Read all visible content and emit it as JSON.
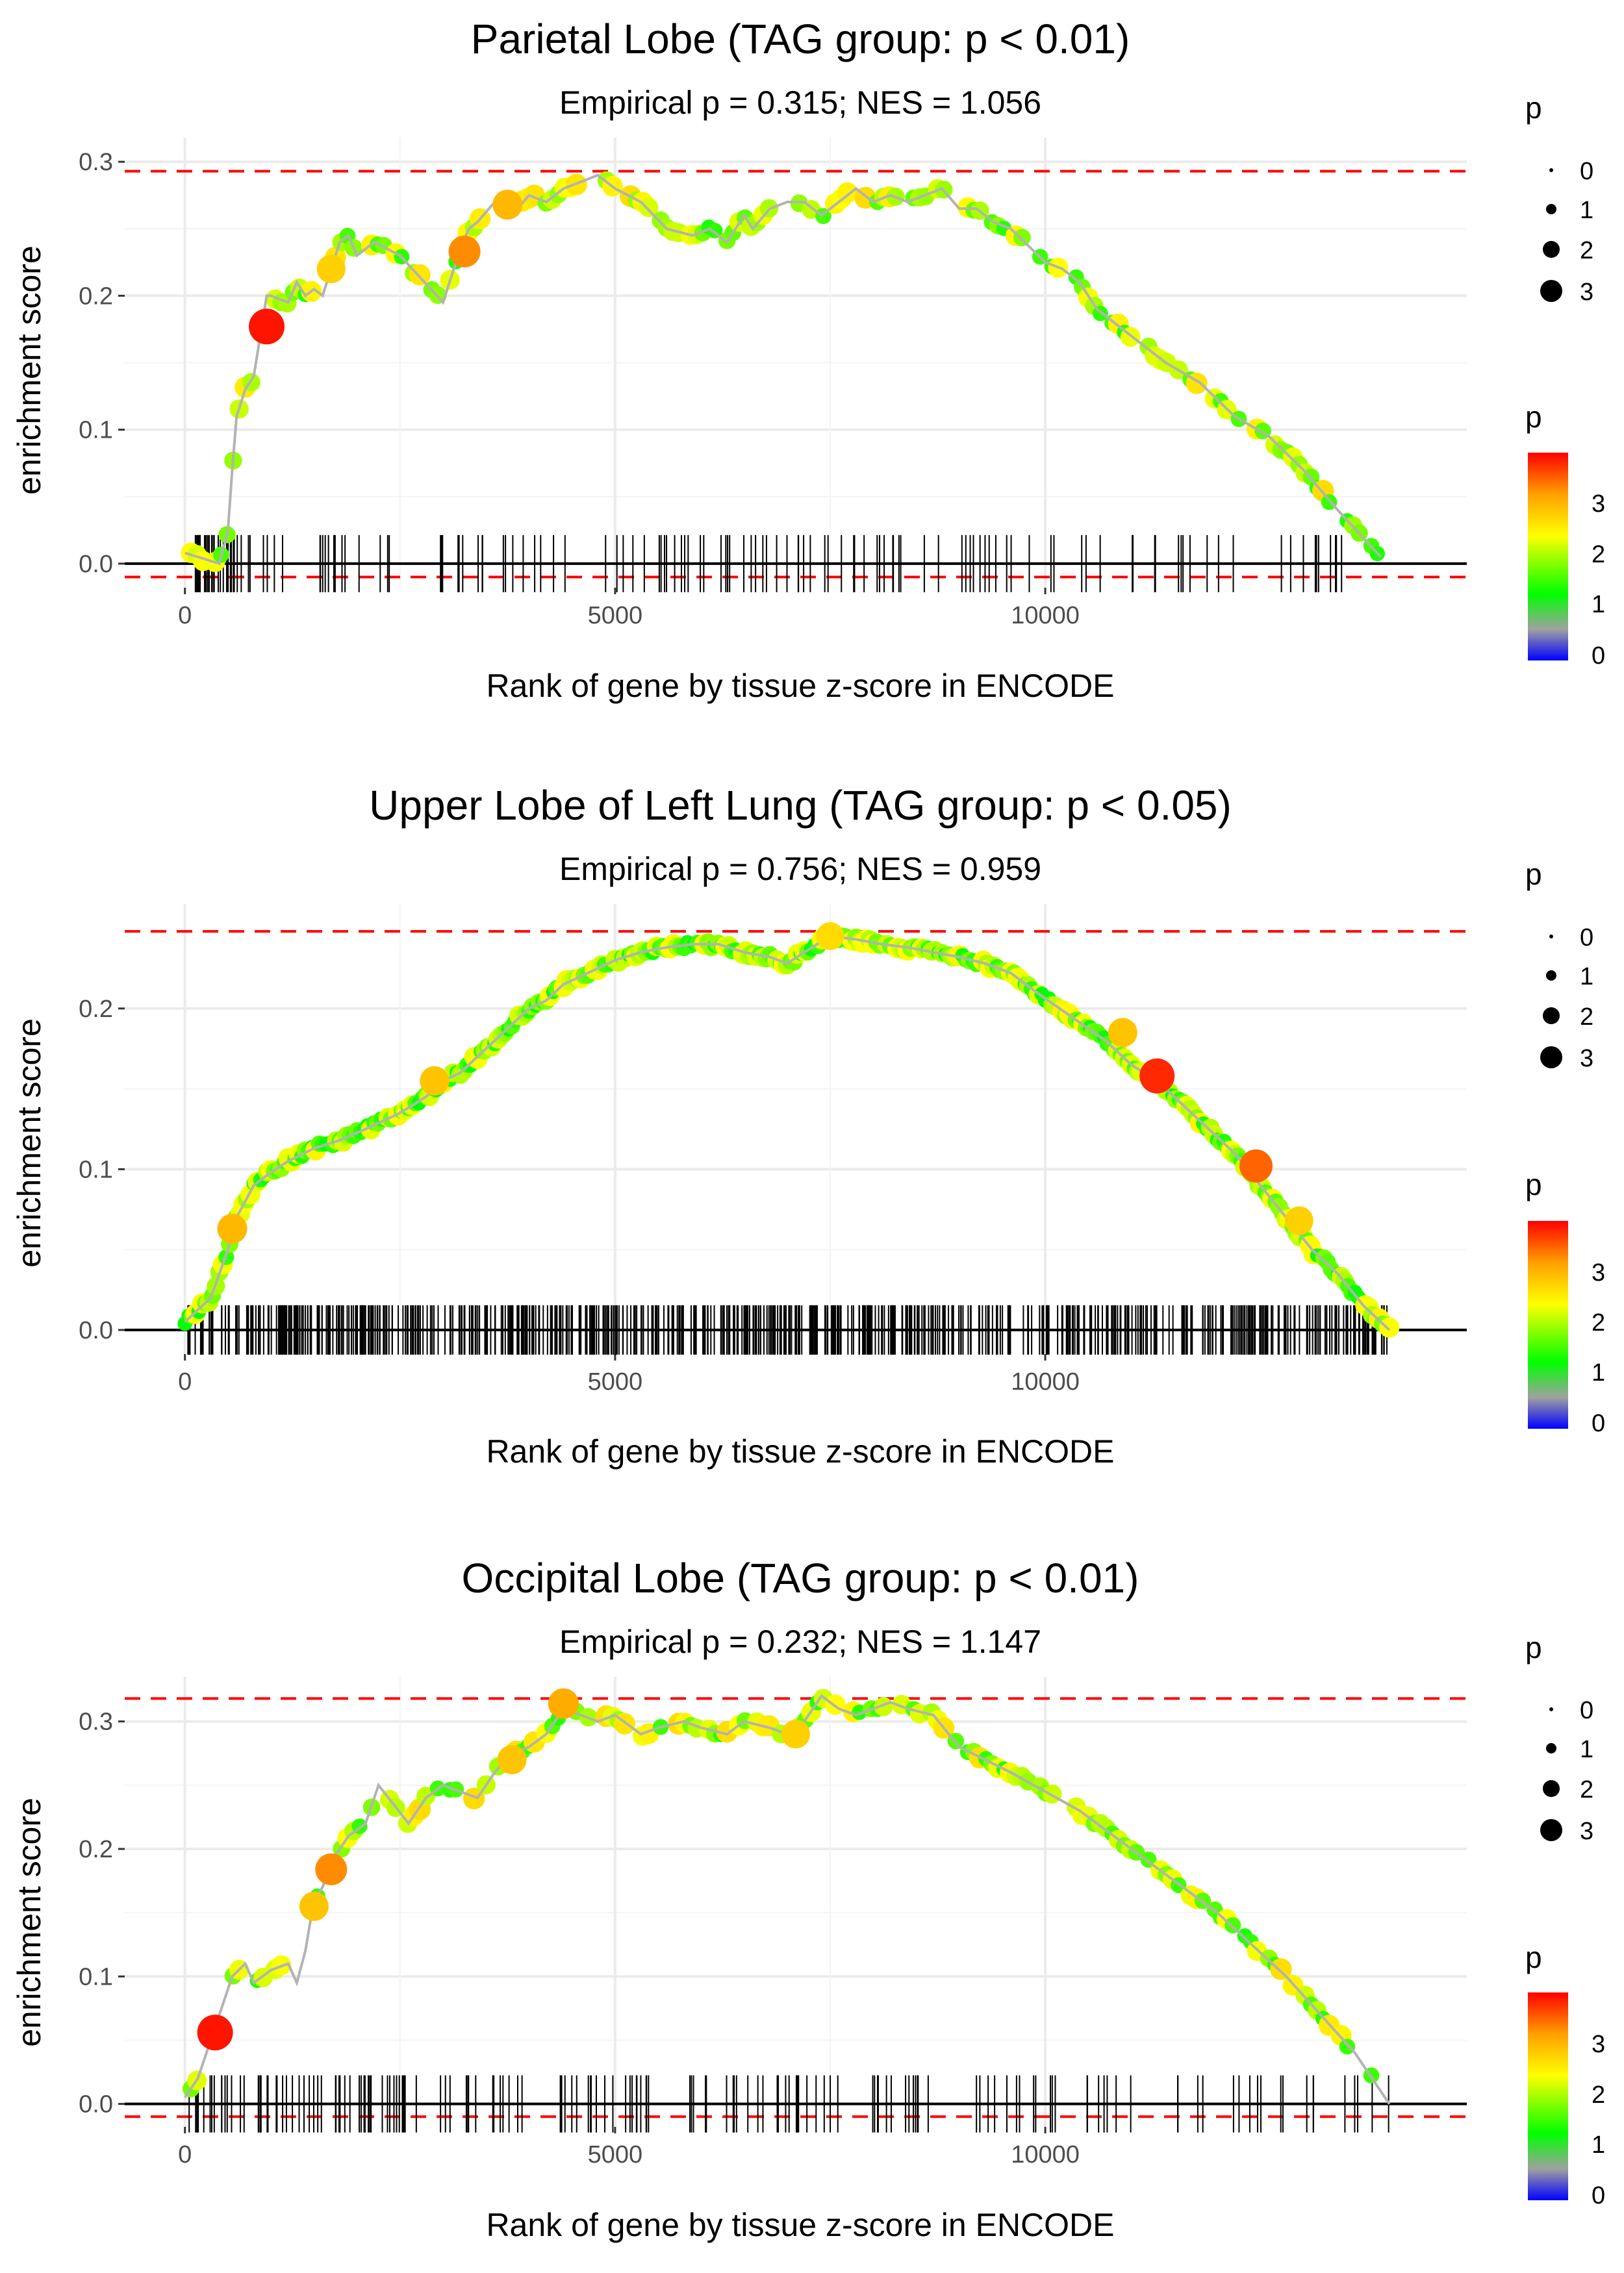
{
  "chart_data": [
    {
      "type": "line",
      "title": "Parietal Lobe (TAG group: p < 0.01)",
      "subtitle": "Empirical p = 0.315; NES = 1.056",
      "xlabel": "Rank of gene by tissue z-score in ENCODE",
      "ylabel": "enrichment score",
      "xlim": [
        -700,
        14900
      ],
      "ylim": [
        -0.018,
        0.318
      ],
      "xticks": [
        0,
        5000,
        10000
      ],
      "xtick_labels": [
        "0",
        "5000",
        "10000"
      ],
      "yticks": [
        0,
        0.1,
        0.2,
        0.3
      ],
      "ytick_labels": [
        "0.0",
        "0.1",
        "0.2",
        "0.3"
      ],
      "max_es": 0.293,
      "min_es": -0.01,
      "n_hits": 150,
      "hit_seed": 11,
      "hit_clusters": [
        [
          100,
          700,
          0.2
        ],
        [
          700,
          1900,
          0.1
        ],
        [
          1900,
          2700,
          0.03
        ],
        [
          2900,
          4900,
          0.12
        ],
        [
          4900,
          5500,
          0.03
        ],
        [
          5500,
          6000,
          0.06
        ],
        [
          6000,
          6900,
          0.07
        ],
        [
          6900,
          7500,
          0.05
        ],
        [
          7500,
          8700,
          0.08
        ],
        [
          8700,
          9300,
          0.04
        ],
        [
          9300,
          10000,
          0.04
        ],
        [
          10000,
          11100,
          0.05
        ],
        [
          11100,
          12300,
          0.06
        ],
        [
          12300,
          14000,
          0.07
        ]
      ],
      "curve_x": [
        0,
        400,
        500,
        550,
        600,
        700,
        800,
        900,
        950,
        1000,
        1200,
        1300,
        1400,
        1500,
        1600,
        1700,
        1800,
        1900,
        2000,
        2200,
        2500,
        3000,
        3200,
        3300,
        3400,
        3600,
        3800,
        4000,
        4200,
        4400,
        4600,
        4800,
        5000,
        5300,
        5600,
        5900,
        6100,
        6300,
        6500,
        6600,
        6800,
        7000,
        7200,
        7400,
        7600,
        7800,
        8000,
        8200,
        8400,
        8600,
        8800,
        9000,
        9200,
        9400,
        9600,
        10000,
        10200,
        10400,
        10600,
        11000,
        11400,
        11800,
        12200,
        12600,
        13000,
        13400,
        13900
      ],
      "curve_y": [
        0.008,
        0.0,
        0.025,
        0.07,
        0.11,
        0.13,
        0.14,
        0.18,
        0.2,
        0.2,
        0.195,
        0.21,
        0.2,
        0.205,
        0.2,
        0.22,
        0.24,
        0.245,
        0.23,
        0.24,
        0.23,
        0.195,
        0.235,
        0.25,
        0.255,
        0.27,
        0.26,
        0.275,
        0.27,
        0.28,
        0.285,
        0.29,
        0.28,
        0.27,
        0.25,
        0.245,
        0.25,
        0.24,
        0.26,
        0.25,
        0.265,
        0.27,
        0.27,
        0.26,
        0.27,
        0.28,
        0.27,
        0.275,
        0.27,
        0.275,
        0.28,
        0.265,
        0.265,
        0.255,
        0.25,
        0.225,
        0.22,
        0.21,
        0.19,
        0.17,
        0.15,
        0.135,
        0.11,
        0.095,
        0.07,
        0.04,
        0.005
      ],
      "highlights": [
        [
          950,
          0.177,
          3.9
        ],
        [
          3250,
          0.233,
          3.3
        ],
        [
          3750,
          0.268,
          3.0
        ],
        [
          1700,
          0.22,
          2.8
        ]
      ],
      "point_seed": 3,
      "size_legend": {
        "title": "p",
        "labels": [
          "0",
          "1",
          "2",
          "3"
        ]
      },
      "color_legend": {
        "title": "p",
        "labels": [
          "0",
          "1",
          "2",
          "3"
        ]
      }
    },
    {
      "type": "line",
      "title": "Upper Lobe of Left Lung (TAG group: p < 0.05)",
      "subtitle": "Empirical p = 0.756; NES = 0.959",
      "xlabel": "Rank of gene by tissue z-score in ENCODE",
      "ylabel": "enrichment score",
      "xlim": [
        -700,
        14900
      ],
      "ylim": [
        -0.015,
        0.265
      ],
      "xticks": [
        0,
        5000,
        10000
      ],
      "xtick_labels": [
        "0",
        "5000",
        "10000"
      ],
      "yticks": [
        0,
        0.1,
        0.2
      ],
      "ytick_labels": [
        "0.0",
        "0.1",
        "0.2"
      ],
      "max_es": 0.248,
      "min_es": null,
      "n_hits": 700,
      "hit_seed": 5,
      "hit_clusters": [
        [
          0,
          14000,
          1
        ]
      ],
      "curve_x": [
        0,
        200,
        300,
        400,
        500,
        600,
        800,
        1000,
        1200,
        1500,
        1800,
        2100,
        2500,
        2800,
        3000,
        3200,
        3400,
        3600,
        3800,
        4000,
        4200,
        4400,
        4600,
        4800,
        5000,
        5300,
        5600,
        5900,
        6200,
        6500,
        6800,
        7000,
        7200,
        7500,
        7800,
        8100,
        8400,
        8700,
        9000,
        9300,
        9600,
        9900,
        10300,
        10700,
        11000,
        11300,
        11600,
        11900,
        12200,
        12500,
        12800,
        13100,
        13400,
        13700,
        14000
      ],
      "curve_y": [
        0.005,
        0.015,
        0.02,
        0.035,
        0.05,
        0.07,
        0.09,
        0.098,
        0.105,
        0.113,
        0.118,
        0.125,
        0.135,
        0.145,
        0.155,
        0.16,
        0.17,
        0.18,
        0.19,
        0.2,
        0.205,
        0.215,
        0.22,
        0.225,
        0.23,
        0.235,
        0.238,
        0.24,
        0.24,
        0.235,
        0.232,
        0.228,
        0.235,
        0.245,
        0.243,
        0.24,
        0.238,
        0.235,
        0.232,
        0.228,
        0.222,
        0.21,
        0.195,
        0.18,
        0.165,
        0.155,
        0.14,
        0.125,
        0.11,
        0.09,
        0.07,
        0.05,
        0.035,
        0.015,
        0.0
      ],
      "highlights": [
        [
          11300,
          0.158,
          3.8
        ],
        [
          12450,
          0.102,
          3.5
        ],
        [
          550,
          0.063,
          3.0
        ],
        [
          2900,
          0.155,
          2.9
        ],
        [
          7500,
          0.245,
          2.7
        ],
        [
          10900,
          0.185,
          2.9
        ],
        [
          12950,
          0.068,
          2.8
        ]
      ],
      "point_seed": 9,
      "size_legend": {
        "title": "p",
        "labels": [
          "0",
          "1",
          "2",
          "3"
        ]
      },
      "color_legend": {
        "title": "p",
        "labels": [
          "0",
          "1",
          "2",
          "3"
        ]
      }
    },
    {
      "type": "line",
      "title": "Occipital Lobe (TAG group: p < 0.01)",
      "subtitle": "Empirical p = 0.232; NES = 1.147",
      "xlabel": "Rank of gene by tissue z-score in ENCODE",
      "ylabel": "enrichment score",
      "xlim": [
        -700,
        14900
      ],
      "ylim": [
        -0.018,
        0.335
      ],
      "xticks": [
        0,
        5000,
        10000
      ],
      "xtick_labels": [
        "0",
        "5000",
        "10000"
      ],
      "yticks": [
        0,
        0.1,
        0.2,
        0.3
      ],
      "ytick_labels": [
        "0.0",
        "0.1",
        "0.2",
        "0.3"
      ],
      "max_es": 0.318,
      "min_es": -0.01,
      "n_hits": 170,
      "hit_seed": 23,
      "hit_clusters": [
        [
          0,
          600,
          0.08
        ],
        [
          600,
          1700,
          0.12
        ],
        [
          1700,
          2400,
          0.1
        ],
        [
          2400,
          4500,
          0.16
        ],
        [
          4500,
          5200,
          0.06
        ],
        [
          5200,
          6500,
          0.09
        ],
        [
          6500,
          7500,
          0.08
        ],
        [
          7500,
          8700,
          0.09
        ],
        [
          8700,
          10000,
          0.05
        ],
        [
          10000,
          11500,
          0.06
        ],
        [
          11500,
          12600,
          0.05
        ],
        [
          12600,
          14000,
          0.06
        ]
      ],
      "curve_x": [
        0,
        150,
        250,
        350,
        450,
        550,
        700,
        800,
        1000,
        1200,
        1300,
        1400,
        1450,
        1500,
        1600,
        1700,
        1800,
        1900,
        2100,
        2250,
        2600,
        2800,
        3000,
        3200,
        3400,
        3600,
        3800,
        4000,
        4200,
        4400,
        4600,
        4800,
        5000,
        5300,
        5500,
        5800,
        6000,
        6300,
        6500,
        6800,
        7000,
        7200,
        7400,
        7600,
        7800,
        8000,
        8200,
        8400,
        8700,
        9000,
        9300,
        9600,
        10000,
        10400,
        10800,
        11200,
        11600,
        12000,
        12400,
        12800,
        13200,
        13600,
        14000
      ],
      "curve_y": [
        0.005,
        0.02,
        0.04,
        0.06,
        0.08,
        0.1,
        0.11,
        0.095,
        0.105,
        0.11,
        0.095,
        0.12,
        0.14,
        0.16,
        0.17,
        0.19,
        0.2,
        0.21,
        0.22,
        0.25,
        0.22,
        0.24,
        0.25,
        0.245,
        0.24,
        0.26,
        0.275,
        0.28,
        0.29,
        0.31,
        0.305,
        0.3,
        0.305,
        0.29,
        0.295,
        0.3,
        0.295,
        0.29,
        0.3,
        0.295,
        0.29,
        0.3,
        0.32,
        0.31,
        0.305,
        0.31,
        0.315,
        0.31,
        0.305,
        0.28,
        0.27,
        0.26,
        0.245,
        0.23,
        0.21,
        0.19,
        0.17,
        0.15,
        0.125,
        0.1,
        0.07,
        0.04,
        0.0
      ],
      "highlights": [
        [
          350,
          0.056,
          3.9
        ],
        [
          1700,
          0.184,
          3.3
        ],
        [
          4400,
          0.314,
          3.1
        ],
        [
          3800,
          0.27,
          2.9
        ],
        [
          7100,
          0.29,
          2.8
        ],
        [
          1500,
          0.155,
          2.9
        ]
      ],
      "point_seed": 17,
      "size_legend": {
        "title": "p",
        "labels": [
          "0",
          "1",
          "2",
          "3"
        ]
      },
      "color_legend": {
        "title": "p",
        "labels": [
          "0",
          "1",
          "2",
          "3"
        ]
      }
    }
  ]
}
